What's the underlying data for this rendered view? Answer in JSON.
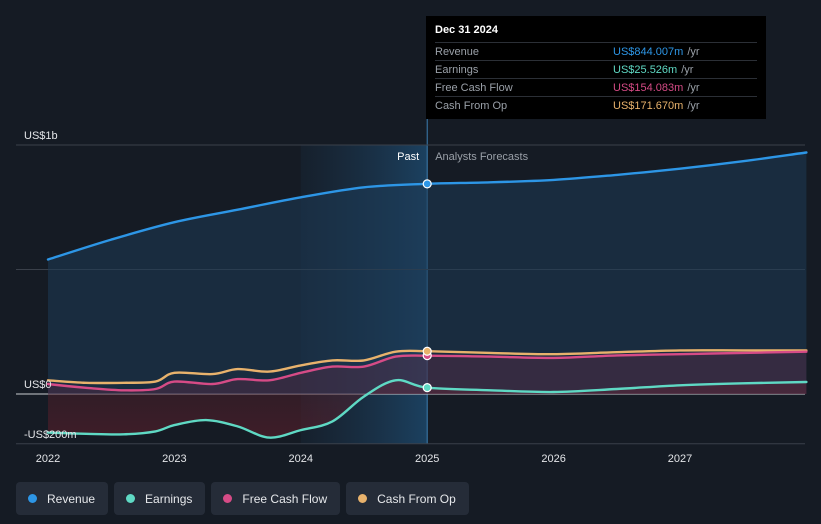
{
  "chart_data": {
    "type": "line",
    "title": "",
    "xlabel": "",
    "ylabel": "",
    "x_ticks": [
      "2022",
      "2023",
      "2024",
      "2025",
      "2026",
      "2027"
    ],
    "y_ticks": [
      "US$1b",
      "US$0",
      "-US$200m"
    ],
    "ylim": [
      -200,
      1000
    ],
    "xlim": [
      2021.8,
      2028.0
    ],
    "divider_x": 2025.0,
    "past_label": "Past",
    "forecast_label": "Analysts Forecasts",
    "series": [
      {
        "name": "Revenue",
        "color": "#2d96e6",
        "points": [
          [
            2022.0,
            540
          ],
          [
            2022.5,
            620
          ],
          [
            2023.0,
            690
          ],
          [
            2023.5,
            740
          ],
          [
            2024.0,
            790
          ],
          [
            2024.5,
            830
          ],
          [
            2025.0,
            844
          ],
          [
            2025.5,
            850
          ],
          [
            2026.0,
            860
          ],
          [
            2026.5,
            880
          ],
          [
            2027.0,
            905
          ],
          [
            2027.5,
            935
          ],
          [
            2028.0,
            970
          ]
        ]
      },
      {
        "name": "Earnings",
        "color": "#5fd9c4",
        "points": [
          [
            2022.0,
            -155
          ],
          [
            2022.3,
            -160
          ],
          [
            2022.6,
            -162
          ],
          [
            2022.85,
            -150
          ],
          [
            2023.0,
            -125
          ],
          [
            2023.25,
            -105
          ],
          [
            2023.5,
            -130
          ],
          [
            2023.75,
            -175
          ],
          [
            2024.0,
            -145
          ],
          [
            2024.25,
            -110
          ],
          [
            2024.5,
            -10
          ],
          [
            2024.75,
            55
          ],
          [
            2025.0,
            25.5
          ],
          [
            2025.5,
            15
          ],
          [
            2026.0,
            8
          ],
          [
            2026.5,
            20
          ],
          [
            2027.0,
            35
          ],
          [
            2027.5,
            43
          ],
          [
            2028.0,
            48
          ]
        ]
      },
      {
        "name": "Free Cash Flow",
        "color": "#d64b86",
        "points": [
          [
            2022.0,
            40
          ],
          [
            2022.3,
            25
          ],
          [
            2022.6,
            15
          ],
          [
            2022.85,
            20
          ],
          [
            2023.0,
            50
          ],
          [
            2023.3,
            40
          ],
          [
            2023.5,
            60
          ],
          [
            2023.75,
            55
          ],
          [
            2024.0,
            85
          ],
          [
            2024.25,
            110
          ],
          [
            2024.5,
            110
          ],
          [
            2024.75,
            150
          ],
          [
            2025.0,
            154
          ],
          [
            2025.5,
            150
          ],
          [
            2026.0,
            145
          ],
          [
            2026.5,
            155
          ],
          [
            2027.0,
            160
          ],
          [
            2027.5,
            165
          ],
          [
            2028.0,
            170
          ]
        ]
      },
      {
        "name": "Cash From Op",
        "color": "#e8b26c",
        "points": [
          [
            2022.0,
            55
          ],
          [
            2022.3,
            45
          ],
          [
            2022.6,
            45
          ],
          [
            2022.85,
            50
          ],
          [
            2023.0,
            85
          ],
          [
            2023.3,
            80
          ],
          [
            2023.5,
            100
          ],
          [
            2023.75,
            90
          ],
          [
            2024.0,
            115
          ],
          [
            2024.25,
            135
          ],
          [
            2024.5,
            135
          ],
          [
            2024.75,
            170
          ],
          [
            2025.0,
            171.7
          ],
          [
            2025.5,
            165
          ],
          [
            2026.0,
            160
          ],
          [
            2026.5,
            168
          ],
          [
            2027.0,
            175
          ],
          [
            2027.5,
            175
          ],
          [
            2028.0,
            175
          ]
        ]
      }
    ],
    "highlight_points": [
      {
        "series": "Revenue",
        "x": 2025.0,
        "y": 844
      },
      {
        "series": "Earnings",
        "x": 2025.0,
        "y": 25.5
      },
      {
        "series": "Free Cash Flow",
        "x": 2025.0,
        "y": 154
      },
      {
        "series": "Cash From Op",
        "x": 2025.0,
        "y": 171.7
      }
    ]
  },
  "tooltip": {
    "date": "Dec 31 2024",
    "rows": [
      {
        "label": "Revenue",
        "value": "US$844.007m",
        "unit": "/yr",
        "color": "#2d96e6"
      },
      {
        "label": "Earnings",
        "value": "US$25.526m",
        "unit": "/yr",
        "color": "#5fd9c4"
      },
      {
        "label": "Free Cash Flow",
        "value": "US$154.083m",
        "unit": "/yr",
        "color": "#d64b86"
      },
      {
        "label": "Cash From Op",
        "value": "US$171.670m",
        "unit": "/yr",
        "color": "#e8b26c"
      }
    ]
  },
  "legend": [
    {
      "label": "Revenue",
      "color": "#2d96e6"
    },
    {
      "label": "Earnings",
      "color": "#5fd9c4"
    },
    {
      "label": "Free Cash Flow",
      "color": "#d64b86"
    },
    {
      "label": "Cash From Op",
      "color": "#e8b26c"
    }
  ]
}
